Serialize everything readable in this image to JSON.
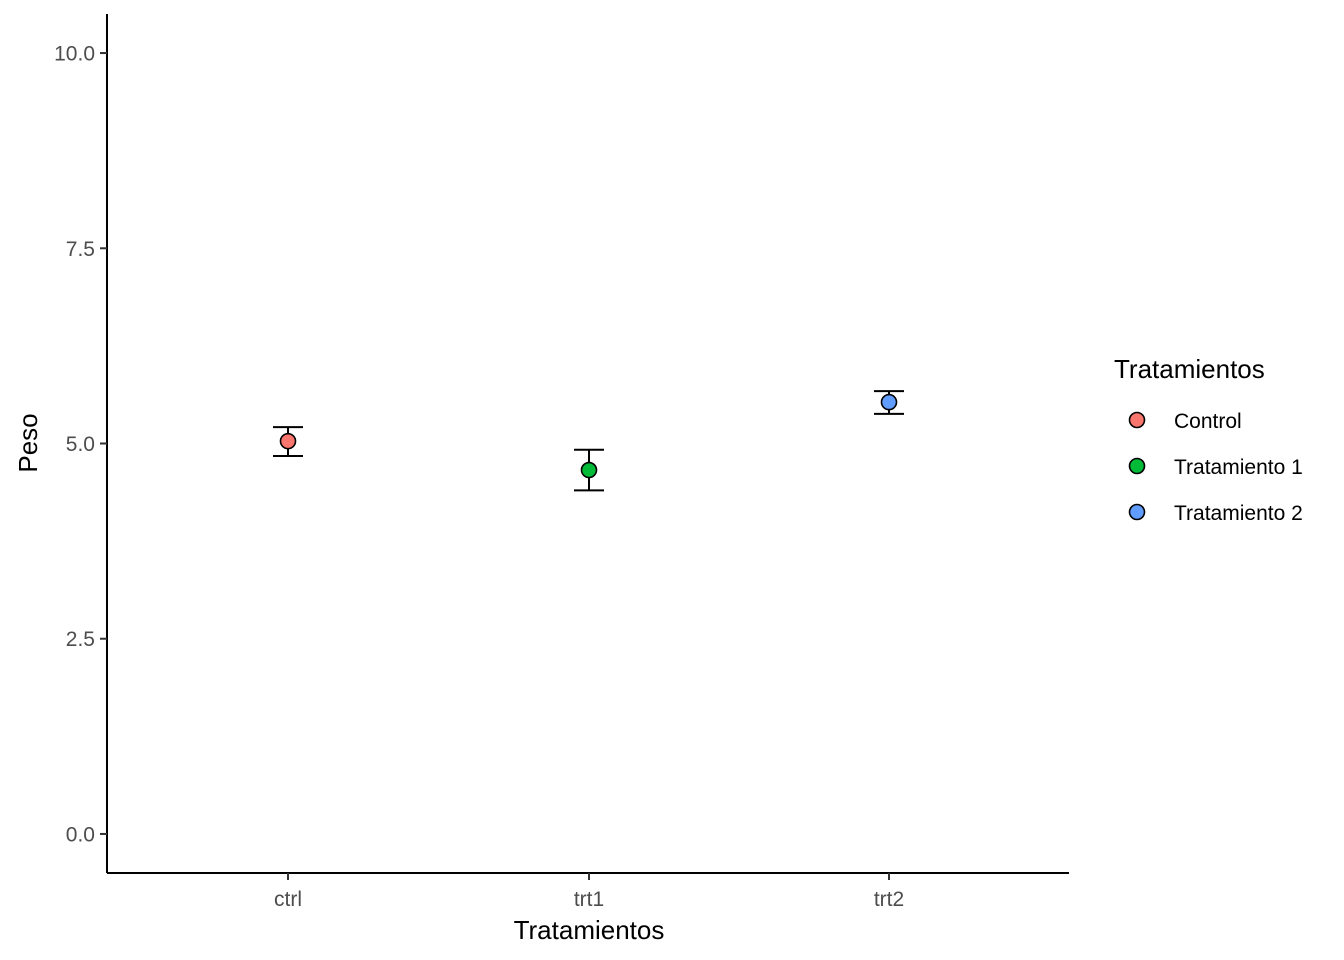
{
  "chart_data": {
    "type": "scatter",
    "xlabel": "Tratamientos",
    "ylabel": "Peso",
    "categories": [
      "ctrl",
      "trt1",
      "trt2"
    ],
    "ylim": [
      -0.5,
      10.5
    ],
    "yticks": [
      0.0,
      2.5,
      5.0,
      7.5,
      10.0
    ],
    "ytick_labels": [
      "0.0",
      "2.5",
      "5.0",
      "7.5",
      "10.0"
    ],
    "grid": false,
    "legend": {
      "title": "Tratamientos",
      "position": "right",
      "entries": [
        "Control",
        "Tratamiento 1",
        "Tratamiento 2"
      ]
    },
    "series": [
      {
        "name": "Control",
        "category": "ctrl",
        "mean": 5.03,
        "lower": 4.84,
        "upper": 5.21,
        "color": "#F8766D"
      },
      {
        "name": "Tratamiento 1",
        "category": "trt1",
        "mean": 4.66,
        "lower": 4.4,
        "upper": 4.92,
        "color": "#00BA38"
      },
      {
        "name": "Tratamiento 2",
        "category": "trt2",
        "mean": 5.53,
        "lower": 5.38,
        "upper": 5.67,
        "color": "#619CFF"
      }
    ]
  }
}
